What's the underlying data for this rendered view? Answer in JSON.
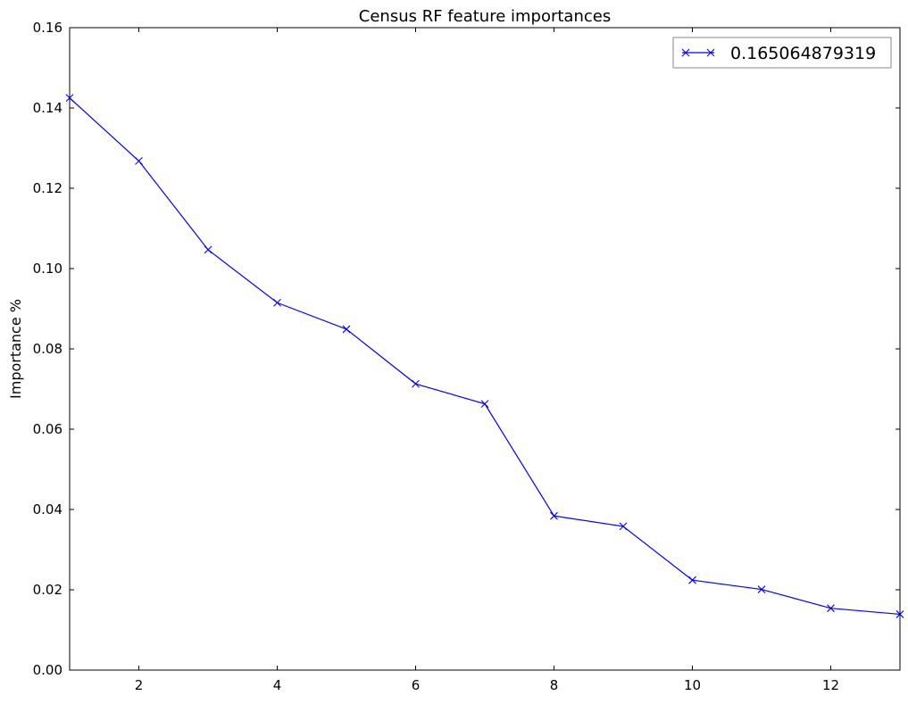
{
  "chart_data": {
    "type": "line",
    "title": "Census RF feature importances",
    "xlabel": "",
    "ylabel": "Importance %",
    "xlim": [
      1,
      13
    ],
    "ylim": [
      0,
      0.16
    ],
    "xticks": [
      2,
      4,
      6,
      8,
      10,
      12
    ],
    "yticks": [
      0.0,
      0.02,
      0.04,
      0.06,
      0.08,
      0.1,
      0.12,
      0.14,
      0.16
    ],
    "x_tick_labels": [
      "2",
      "4",
      "6",
      "8",
      "10",
      "12"
    ],
    "y_tick_labels": [
      "0.00",
      "0.02",
      "0.04",
      "0.06",
      "0.08",
      "0.10",
      "0.12",
      "0.14",
      "0.16"
    ],
    "grid": false,
    "legend": {
      "placement": "top-right",
      "entries": [
        "0.165064879319"
      ]
    },
    "series": [
      {
        "name": "0.165064879319",
        "color": "#0000ff",
        "marker": "x",
        "x": [
          1,
          2,
          3,
          4,
          5,
          6,
          7,
          8,
          9,
          10,
          11,
          12,
          13
        ],
        "values": [
          0.1425,
          0.1268,
          0.1047,
          0.0915,
          0.0849,
          0.0713,
          0.0663,
          0.0384,
          0.0358,
          0.0224,
          0.0201,
          0.0154,
          0.0139
        ]
      }
    ]
  }
}
